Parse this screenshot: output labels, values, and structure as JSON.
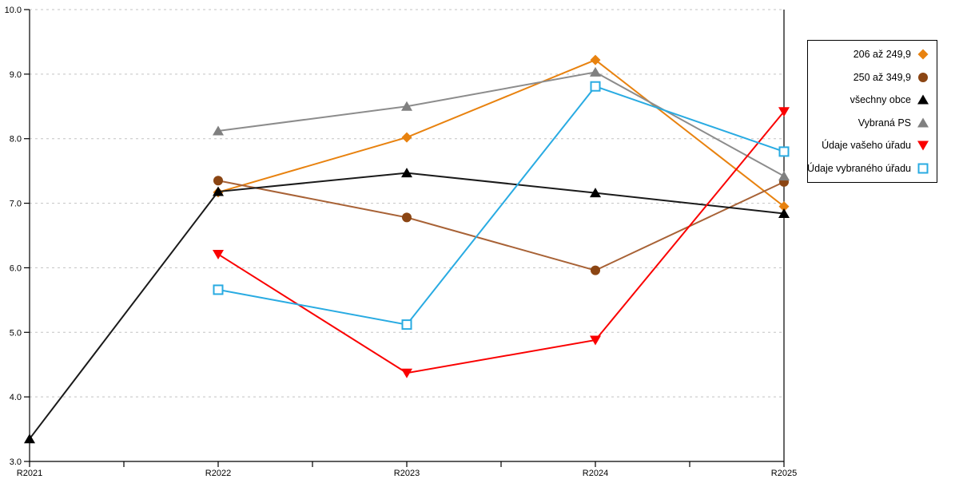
{
  "chart_data": {
    "type": "line",
    "title": "",
    "x_categories": [
      "R2021",
      "R2022",
      "R2023",
      "R2024",
      "R2025"
    ],
    "y_axis": {
      "min": 3.0,
      "max": 10.0,
      "step": 1.0,
      "tick_format": "0.0"
    },
    "grid": "horizontal-dashed",
    "grid_color": "#C3C3C3",
    "axis_color": "#000000",
    "legend_position": "right-outside",
    "series": [
      {
        "name": "206 až 249,9",
        "marker": "diamond",
        "color": "#E8820F",
        "line_color": "#E8820F",
        "values": [
          null,
          7.17,
          8.02,
          9.22,
          6.95
        ]
      },
      {
        "name": "250 až 349,9",
        "marker": "circle",
        "color": "#8B4513",
        "line_color": "#A86236",
        "values": [
          null,
          7.35,
          6.78,
          5.96,
          7.33
        ]
      },
      {
        "name": "všechny obce",
        "marker": "triangle-up",
        "color": "#000000",
        "line_color": "#1A1A1A",
        "values": [
          3.35,
          7.18,
          7.47,
          7.16,
          6.84
        ]
      },
      {
        "name": "Vybraná PS",
        "marker": "triangle-up",
        "color": "#808080",
        "line_color": "#8C8C8C",
        "values": [
          null,
          8.12,
          8.5,
          9.03,
          7.42
        ]
      },
      {
        "name": "Údaje vašeho úřadu",
        "marker": "triangle-down",
        "color": "#FA0000",
        "line_color": "#FA0000",
        "values": [
          null,
          6.21,
          4.37,
          4.88,
          8.42
        ]
      },
      {
        "name": "Údaje vybraného úřadu",
        "marker": "square-open",
        "color": "#29ABE2",
        "line_color": "#29ABE2",
        "values": [
          null,
          5.66,
          5.12,
          8.81,
          7.8
        ]
      }
    ]
  }
}
